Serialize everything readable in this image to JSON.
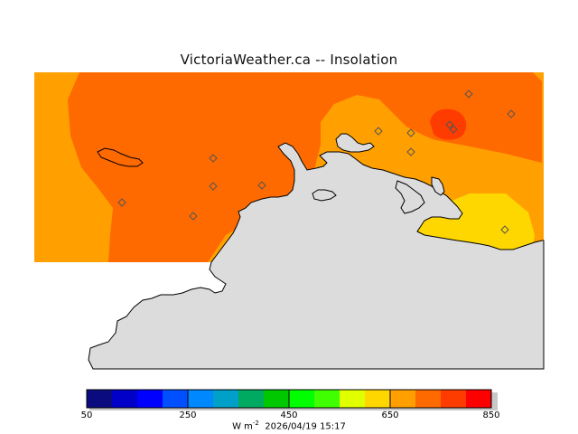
{
  "title": "VictoriaWeather.ca -- Insolation",
  "colorbar": {
    "ticks": [
      "50",
      "250",
      "450",
      "650",
      "850"
    ],
    "min": 50,
    "max": 850,
    "step": 50,
    "colors": [
      "#0b0b80",
      "#0000c8",
      "#0000ff",
      "#0050ff",
      "#0088ff",
      "#00a0c8",
      "#00aa60",
      "#00c800",
      "#00ff00",
      "#40ff00",
      "#e0ff00",
      "#ffd700",
      "#ffa000",
      "#ff6a00",
      "#ff3c00",
      "#ff0000"
    ]
  },
  "footer": {
    "unit": "W m",
    "unit_exp": "-2",
    "timestamp": "2026/04/19 15:17"
  },
  "map_colors": {
    "land": "#dcdcdc",
    "band_700_750": "#ff6a00",
    "band_650_700": "#ffa000",
    "band_600_650": "#ffd700",
    "band_750_800": "#ff3c00",
    "coast": "#000000"
  }
}
